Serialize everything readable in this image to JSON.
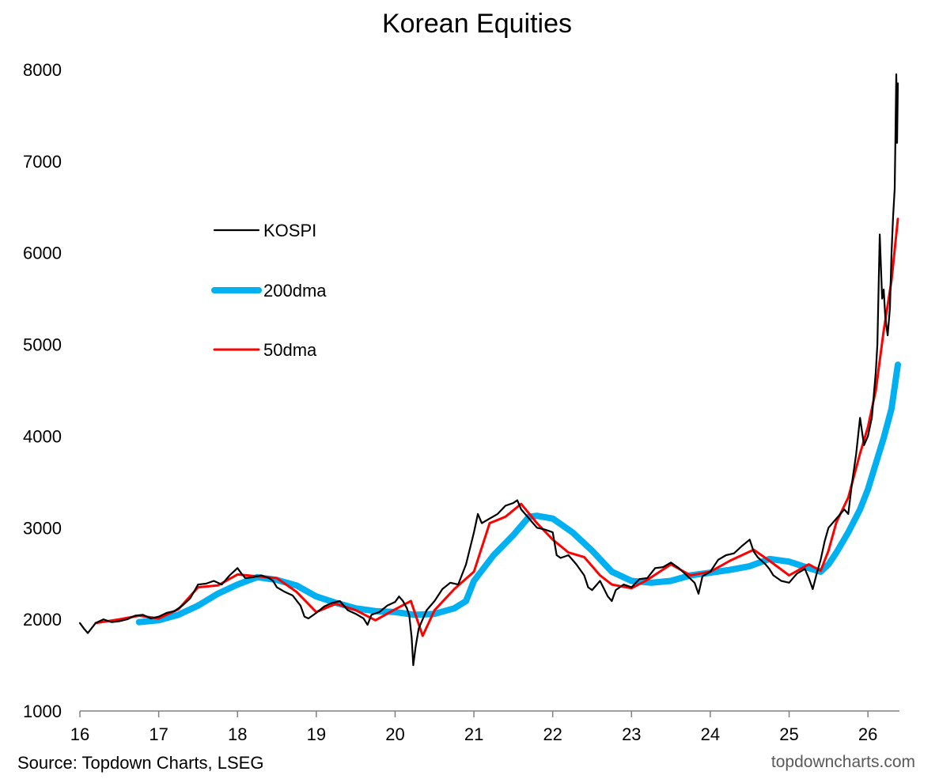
{
  "chart_data": {
    "type": "line",
    "title": "Korean Equities",
    "xlabel": "",
    "ylabel": "",
    "xlim": [
      16,
      26.4
    ],
    "ylim": [
      1000,
      8000
    ],
    "x_ticks": [
      16,
      17,
      18,
      19,
      20,
      21,
      22,
      23,
      24,
      25,
      26
    ],
    "x_tick_labels": [
      "16",
      "17",
      "18",
      "19",
      "20",
      "21",
      "22",
      "23",
      "24",
      "25",
      "26"
    ],
    "y_ticks": [
      1000,
      2000,
      3000,
      4000,
      5000,
      6000,
      7000,
      8000
    ],
    "y_tick_labels": [
      "1000",
      "2000",
      "3000",
      "4000",
      "5000",
      "6000",
      "7000",
      "8000"
    ],
    "grid": false,
    "legend_position": "upper-left",
    "series": [
      {
        "name": "KOSPI",
        "color": "#000000",
        "x": [
          16.0,
          16.05,
          16.1,
          16.2,
          16.3,
          16.4,
          16.5,
          16.6,
          16.7,
          16.8,
          16.9,
          17.0,
          17.1,
          17.2,
          17.3,
          17.4,
          17.5,
          17.6,
          17.7,
          17.8,
          17.9,
          18.0,
          18.05,
          18.1,
          18.2,
          18.3,
          18.4,
          18.45,
          18.5,
          18.6,
          18.7,
          18.8,
          18.85,
          18.9,
          19.0,
          19.1,
          19.2,
          19.3,
          19.4,
          19.5,
          19.6,
          19.65,
          19.7,
          19.8,
          19.9,
          20.0,
          20.05,
          20.1,
          20.15,
          20.18,
          20.21,
          20.23,
          20.26,
          20.3,
          20.35,
          20.4,
          20.5,
          20.6,
          20.7,
          20.8,
          20.9,
          21.0,
          21.05,
          21.1,
          21.2,
          21.3,
          21.4,
          21.5,
          21.55,
          21.6,
          21.7,
          21.8,
          21.9,
          22.0,
          22.05,
          22.1,
          22.2,
          22.3,
          22.4,
          22.45,
          22.5,
          22.6,
          22.7,
          22.75,
          22.8,
          22.9,
          23.0,
          23.1,
          23.2,
          23.3,
          23.4,
          23.5,
          23.6,
          23.7,
          23.8,
          23.85,
          23.9,
          24.0,
          24.1,
          24.2,
          24.3,
          24.4,
          24.5,
          24.55,
          24.6,
          24.7,
          24.75,
          24.8,
          24.9,
          25.0,
          25.1,
          25.2,
          25.25,
          25.3,
          25.35,
          25.4,
          25.45,
          25.5,
          25.6,
          25.7,
          25.75,
          25.8,
          25.85,
          25.9,
          25.95,
          26.0,
          26.05,
          26.1,
          26.12,
          26.15,
          26.18,
          26.2,
          26.22,
          26.25,
          26.28,
          26.3,
          26.32,
          26.34,
          26.35,
          26.36,
          26.37,
          26.38
        ],
        "values": [
          1960,
          1900,
          1850,
          1960,
          2000,
          1970,
          1980,
          2000,
          2040,
          2050,
          2010,
          2030,
          2070,
          2090,
          2150,
          2230,
          2380,
          2390,
          2420,
          2380,
          2480,
          2560,
          2500,
          2450,
          2460,
          2480,
          2450,
          2420,
          2350,
          2300,
          2260,
          2150,
          2030,
          2010,
          2070,
          2140,
          2180,
          2200,
          2100,
          2060,
          2010,
          1940,
          2050,
          2080,
          2150,
          2190,
          2250,
          2200,
          2120,
          2040,
          1800,
          1500,
          1700,
          1900,
          2000,
          2100,
          2200,
          2330,
          2400,
          2380,
          2600,
          2950,
          3150,
          3050,
          3100,
          3150,
          3240,
          3270,
          3300,
          3200,
          3100,
          3000,
          2980,
          2950,
          2700,
          2670,
          2700,
          2600,
          2480,
          2350,
          2320,
          2420,
          2250,
          2200,
          2320,
          2380,
          2350,
          2440,
          2450,
          2560,
          2570,
          2620,
          2560,
          2480,
          2400,
          2280,
          2470,
          2520,
          2650,
          2700,
          2720,
          2800,
          2870,
          2740,
          2680,
          2600,
          2550,
          2480,
          2420,
          2400,
          2500,
          2550,
          2450,
          2330,
          2500,
          2650,
          2850,
          3000,
          3100,
          3200,
          3150,
          3500,
          3800,
          4200,
          3900,
          4000,
          4200,
          4700,
          5000,
          6200,
          5500,
          5600,
          5300,
          5100,
          5400,
          6000,
          6400,
          6700,
          7300,
          7950,
          7200,
          7850
        ]
      },
      {
        "name": "200dma",
        "color": "#00B0F0",
        "x": [
          16.75,
          17.0,
          17.25,
          17.5,
          17.75,
          18.0,
          18.25,
          18.5,
          18.75,
          19.0,
          19.25,
          19.5,
          19.75,
          20.0,
          20.25,
          20.5,
          20.75,
          20.9,
          21.0,
          21.25,
          21.5,
          21.7,
          21.8,
          22.0,
          22.25,
          22.5,
          22.75,
          23.0,
          23.25,
          23.5,
          23.75,
          24.0,
          24.25,
          24.5,
          24.75,
          25.0,
          25.25,
          25.4,
          25.5,
          25.6,
          25.75,
          25.9,
          26.0,
          26.1,
          26.2,
          26.3,
          26.38
        ],
        "values": [
          1970,
          1990,
          2050,
          2150,
          2280,
          2380,
          2460,
          2430,
          2370,
          2250,
          2180,
          2120,
          2090,
          2080,
          2050,
          2060,
          2120,
          2200,
          2420,
          2700,
          2920,
          3120,
          3130,
          3100,
          2950,
          2750,
          2520,
          2420,
          2400,
          2420,
          2480,
          2510,
          2540,
          2580,
          2660,
          2630,
          2560,
          2520,
          2600,
          2730,
          2950,
          3200,
          3420,
          3700,
          3980,
          4300,
          4780
        ]
      },
      {
        "name": "50dma",
        "color": "#FF0000",
        "x": [
          16.2,
          16.5,
          16.75,
          17.0,
          17.25,
          17.5,
          17.75,
          18.0,
          18.25,
          18.5,
          18.75,
          19.0,
          19.25,
          19.5,
          19.75,
          20.0,
          20.2,
          20.35,
          20.5,
          20.75,
          21.0,
          21.2,
          21.4,
          21.6,
          21.8,
          22.0,
          22.2,
          22.4,
          22.6,
          22.75,
          23.0,
          23.2,
          23.5,
          23.75,
          24.0,
          24.25,
          24.55,
          24.75,
          25.0,
          25.25,
          25.4,
          25.5,
          25.6,
          25.75,
          25.9,
          26.0,
          26.1,
          26.2,
          26.3,
          26.38
        ],
        "values": [
          1960,
          2000,
          2040,
          2010,
          2110,
          2350,
          2370,
          2490,
          2470,
          2450,
          2300,
          2080,
          2170,
          2100,
          1990,
          2110,
          2200,
          1820,
          2100,
          2330,
          2520,
          3050,
          3120,
          3260,
          3050,
          2870,
          2730,
          2680,
          2480,
          2380,
          2340,
          2430,
          2600,
          2480,
          2520,
          2640,
          2760,
          2640,
          2480,
          2600,
          2530,
          2750,
          3060,
          3330,
          3810,
          4100,
          4500,
          5150,
          5700,
          6370
        ]
      }
    ]
  },
  "footer": {
    "source": "Source: Topdown Charts, LSEG",
    "watermark": "topdowncharts.com"
  }
}
